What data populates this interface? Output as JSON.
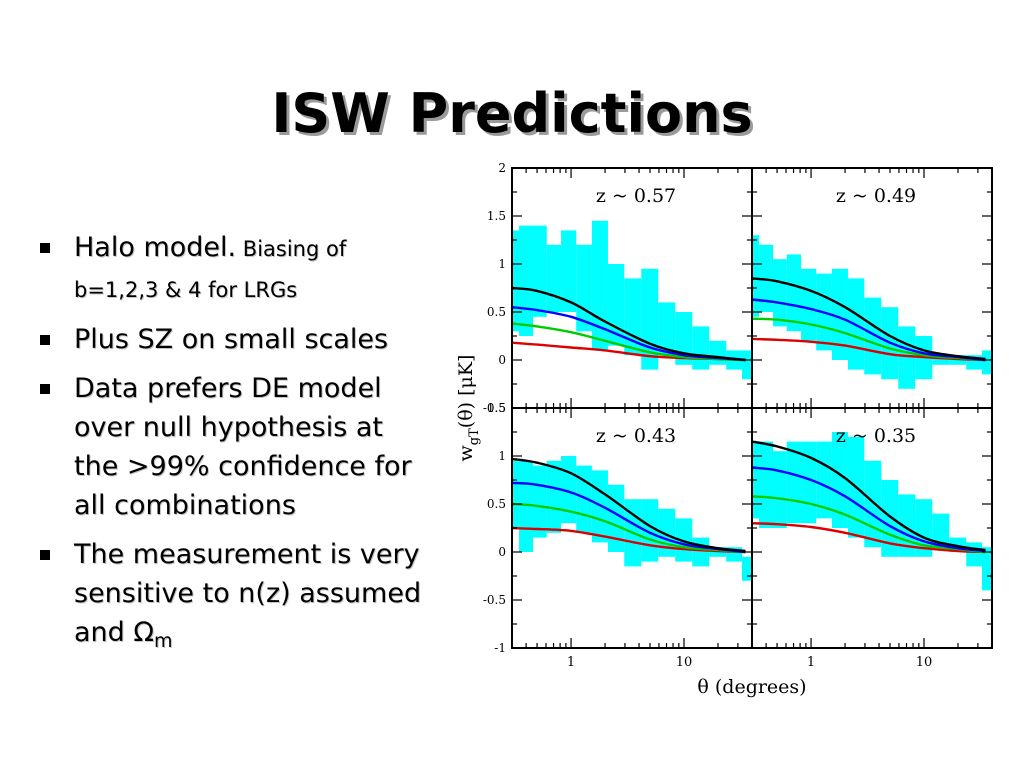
{
  "slide": {
    "title": "ISW Predictions",
    "bullets": [
      {
        "main": "Halo model.",
        "small": " Biasing of b=1,2,3 & 4 for LRGs"
      },
      {
        "main": "Plus SZ on small scales"
      },
      {
        "main": "Data prefers DE model over null hypothesis at the >99% confidence for all combinations"
      },
      {
        "main": "The measurement is very sensitive to n(z) assumed and ",
        "symbol": "Ω",
        "subscript": "m"
      }
    ]
  },
  "chart_data": {
    "type": "multi-panel line with error bands",
    "xlabel": "θ (degrees)",
    "ylabel": "w",
    "ylabel_sub": "gT",
    "ylabel_rest": "(θ) [μK]",
    "xscale": "log",
    "xlim": [
      0.3,
      40
    ],
    "x_ticks": [
      "1",
      "10"
    ],
    "colors": {
      "band": "#00ffff",
      "b4": "#000000",
      "b3": "#0000ff",
      "b2": "#00cc00",
      "b1": "#dd0000"
    },
    "x": [
      0.3,
      0.5,
      1,
      2,
      5,
      10,
      20,
      35
    ],
    "band_x": [
      0.3,
      0.4,
      0.53,
      0.7,
      0.95,
      1.3,
      1.8,
      2.5,
      3.5,
      5,
      7,
      10,
      14,
      20,
      28,
      38
    ],
    "panels": [
      {
        "label": "z ~ 0.57",
        "ylim": [
          -0.5,
          2.0
        ],
        "y_ticks": [
          "2",
          "1.5",
          "1",
          "0.5",
          "0",
          "-0.5"
        ],
        "band_lo": [
          0.3,
          0.25,
          0.45,
          0.5,
          0.5,
          0.3,
          0.1,
          0.15,
          0.05,
          -0.1,
          0.05,
          -0.05,
          -0.1,
          -0.05,
          -0.1,
          -0.2
        ],
        "band_hi": [
          1.35,
          1.4,
          1.4,
          1.2,
          1.35,
          1.2,
          1.45,
          1.0,
          0.85,
          0.95,
          0.6,
          0.5,
          0.35,
          0.2,
          0.1,
          0.1
        ],
        "series": [
          {
            "key": "b4",
            "values": [
              0.75,
              0.72,
              0.6,
              0.4,
              0.17,
              0.07,
              0.03,
              0.0
            ]
          },
          {
            "key": "b3",
            "values": [
              0.55,
              0.52,
              0.45,
              0.32,
              0.13,
              0.05,
              0.02,
              0.0
            ]
          },
          {
            "key": "b2",
            "values": [
              0.38,
              0.35,
              0.29,
              0.2,
              0.08,
              0.03,
              0.01,
              0.0
            ]
          },
          {
            "key": "b1",
            "values": [
              0.18,
              0.16,
              0.13,
              0.1,
              0.04,
              0.02,
              0.01,
              0.0
            ]
          }
        ]
      },
      {
        "label": "z ~ 0.49",
        "ylim": [
          -0.5,
          2.0
        ],
        "y_ticks": [],
        "band_lo": [
          0.45,
          0.5,
          0.35,
          0.3,
          0.2,
          0.1,
          0.0,
          -0.1,
          -0.15,
          -0.2,
          -0.3,
          -0.2,
          -0.05,
          -0.05,
          -0.1,
          -0.15
        ],
        "band_hi": [
          1.3,
          1.2,
          1.05,
          1.1,
          0.95,
          0.9,
          0.95,
          0.85,
          0.65,
          0.55,
          0.35,
          0.25,
          0.05,
          0.05,
          0.05,
          0.1
        ],
        "series": [
          {
            "key": "b4",
            "values": [
              0.85,
              0.82,
              0.72,
              0.55,
              0.25,
              0.1,
              0.04,
              0.01
            ]
          },
          {
            "key": "b3",
            "values": [
              0.63,
              0.6,
              0.53,
              0.42,
              0.18,
              0.07,
              0.03,
              0.0
            ]
          },
          {
            "key": "b2",
            "values": [
              0.43,
              0.42,
              0.37,
              0.28,
              0.12,
              0.05,
              0.02,
              0.0
            ]
          },
          {
            "key": "b1",
            "values": [
              0.22,
              0.21,
              0.19,
              0.15,
              0.06,
              0.03,
              0.01,
              0.0
            ]
          }
        ]
      },
      {
        "label": "z ~ 0.43",
        "ylim": [
          -1.0,
          1.5
        ],
        "y_ticks": [
          "1.5",
          "1",
          "0.5",
          "0",
          "-0.5",
          "-1"
        ],
        "band_lo": [
          0.25,
          0.0,
          0.15,
          0.2,
          0.3,
          0.2,
          0.1,
          0.0,
          -0.15,
          -0.1,
          -0.05,
          -0.1,
          -0.15,
          -0.05,
          -0.1,
          -0.3
        ],
        "band_hi": [
          0.95,
          0.95,
          0.9,
          0.95,
          1.0,
          0.9,
          0.85,
          0.7,
          0.55,
          0.55,
          0.45,
          0.35,
          0.15,
          0.05,
          0.05,
          -0.05
        ],
        "series": [
          {
            "key": "b4",
            "values": [
              0.97,
              0.93,
              0.82,
              0.6,
              0.27,
              0.11,
              0.04,
              0.01
            ]
          },
          {
            "key": "b3",
            "values": [
              0.72,
              0.7,
              0.62,
              0.46,
              0.2,
              0.08,
              0.03,
              0.0
            ]
          },
          {
            "key": "b2",
            "values": [
              0.5,
              0.48,
              0.42,
              0.32,
              0.13,
              0.05,
              0.02,
              0.0
            ]
          },
          {
            "key": "b1",
            "values": [
              0.25,
              0.24,
              0.22,
              0.16,
              0.07,
              0.03,
              0.01,
              0.0
            ]
          }
        ]
      },
      {
        "label": "z ~ 0.35",
        "ylim": [
          -1.0,
          1.5
        ],
        "y_ticks": [],
        "band_lo": [
          0.35,
          0.25,
          0.25,
          0.3,
          0.3,
          0.35,
          0.25,
          0.15,
          0.05,
          -0.05,
          -0.05,
          -0.05,
          0.05,
          0.0,
          -0.15,
          -0.4
        ],
        "band_hi": [
          1.15,
          1.15,
          1.05,
          1.15,
          1.15,
          1.15,
          1.25,
          1.2,
          0.95,
          0.75,
          0.6,
          0.55,
          0.4,
          0.15,
          0.1,
          0.05
        ],
        "series": [
          {
            "key": "b4",
            "values": [
              1.15,
              1.1,
              0.98,
              0.77,
              0.37,
              0.15,
              0.06,
              0.02
            ]
          },
          {
            "key": "b3",
            "values": [
              0.88,
              0.85,
              0.75,
              0.58,
              0.27,
              0.11,
              0.04,
              0.01
            ]
          },
          {
            "key": "b2",
            "values": [
              0.58,
              0.56,
              0.5,
              0.39,
              0.18,
              0.07,
              0.03,
              0.0
            ]
          },
          {
            "key": "b1",
            "values": [
              0.3,
              0.29,
              0.26,
              0.2,
              0.09,
              0.04,
              0.01,
              0.0
            ]
          }
        ]
      }
    ]
  }
}
